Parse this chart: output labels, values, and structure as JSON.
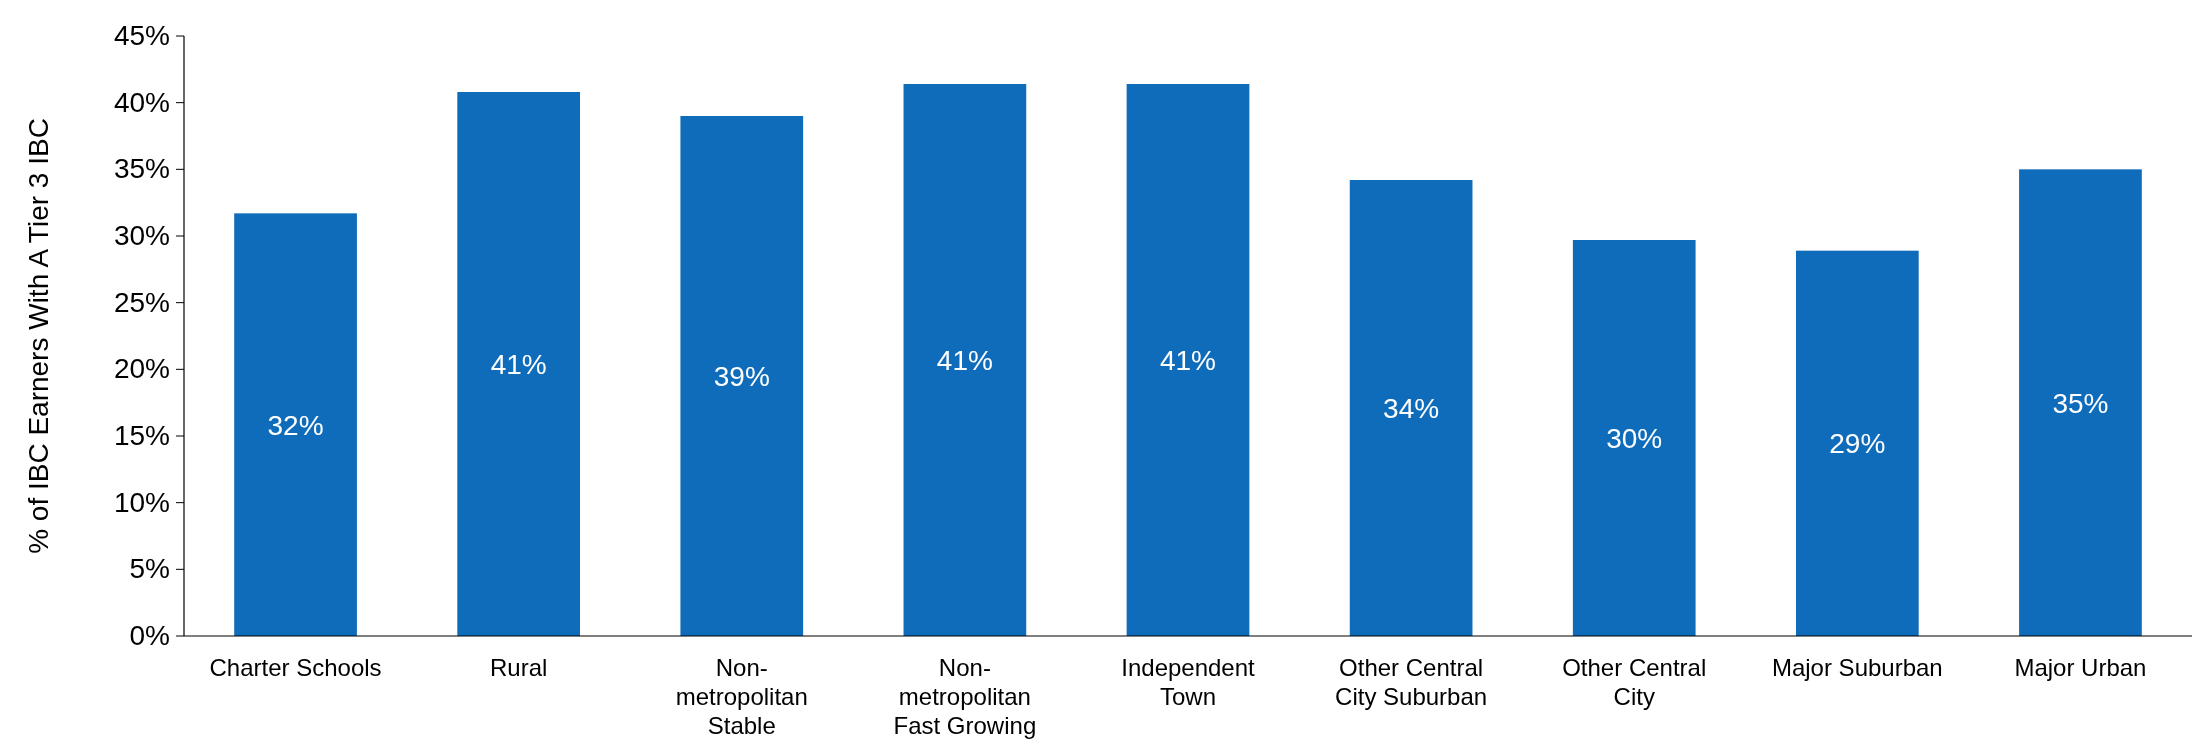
{
  "chart_data": {
    "type": "bar",
    "ylabel": "% of IBC Earners With A Tier 3 IBC",
    "categories": [
      "Charter Schools",
      "Rural",
      "Non-metropolitan Stable",
      "Non-metropolitan Fast Growing",
      "Independent Town",
      "Other Central City Suburban",
      "Other Central City",
      "Major Suburban",
      "Major Urban"
    ],
    "values": [
      31.7,
      40.8,
      39.0,
      41.4,
      41.4,
      34.2,
      29.7,
      28.9,
      35.0
    ],
    "value_labels": [
      "32%",
      "41%",
      "39%",
      "41%",
      "41%",
      "34%",
      "30%",
      "29%",
      "35%"
    ],
    "color": "#0f6cbb",
    "ylim": [
      0,
      45
    ],
    "yticks": [
      {
        "value": 0,
        "label": "0%"
      },
      {
        "value": 5,
        "label": "5%"
      },
      {
        "value": 10,
        "label": "10%"
      },
      {
        "value": 15,
        "label": "15%"
      },
      {
        "value": 20,
        "label": "20%"
      },
      {
        "value": 25,
        "label": "25%"
      },
      {
        "value": 30,
        "label": "30%"
      },
      {
        "value": 35,
        "label": "35%"
      },
      {
        "value": 40,
        "label": "40%"
      },
      {
        "value": 45,
        "label": "45%"
      }
    ],
    "grid": false
  }
}
